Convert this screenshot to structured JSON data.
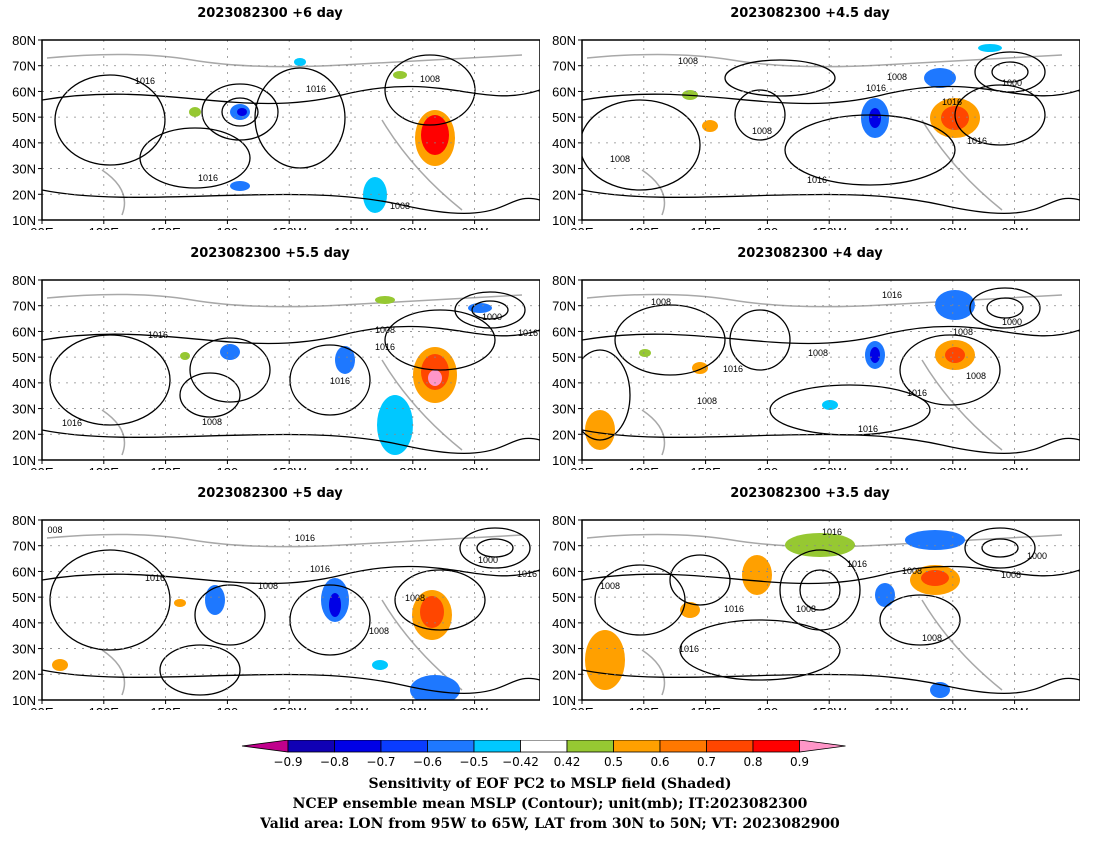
{
  "panels": [
    {
      "title": "2023082300  +6 day",
      "contour_labels": [
        "1016",
        "1008",
        "1016",
        "1016",
        "1008"
      ]
    },
    {
      "title": "2023082300  +4.5 day",
      "contour_labels": [
        "1008",
        "1008",
        "1016",
        "1008",
        "1000",
        "1016",
        "1016",
        "1008",
        "1016"
      ]
    },
    {
      "title": "2023082300  +5.5 day",
      "contour_labels": [
        "1016",
        "1008",
        "1016",
        "1016",
        "1000",
        "1016",
        "1008",
        "1016"
      ]
    },
    {
      "title": "2023082300  +4 day",
      "contour_labels": [
        "1008",
        "1016",
        "1008",
        "1008",
        "1000",
        "1016",
        "1008",
        "1016",
        "1016",
        "1008"
      ]
    },
    {
      "title": "2023082300  +5 day",
      "contour_labels": [
        "1016",
        "1008",
        "1016",
        "1016",
        "1008",
        "1000",
        "1016",
        "1008",
        "008"
      ]
    },
    {
      "title": "2023082300  +3.5 day",
      "contour_labels": [
        "1008",
        "1016",
        "1016",
        "1008",
        "1000",
        "1016",
        "1008",
        "1008",
        "1016",
        "1008"
      ]
    }
  ],
  "axes": {
    "lat_labels": [
      "80N",
      "70N",
      "60N",
      "50N",
      "40N",
      "30N",
      "20N",
      "10N"
    ],
    "lon_labels": [
      "90E",
      "120E",
      "150E",
      "180",
      "150W",
      "120W",
      "90W",
      "60W"
    ]
  },
  "colorbar": {
    "tick_labels": [
      "−0.9",
      "−0.8",
      "−0.7",
      "−0.6",
      "−0.5",
      "−0.42",
      "0.42",
      "0.5",
      "0.6",
      "0.7",
      "0.8",
      "0.9"
    ],
    "colors": [
      "#c0008c",
      "#1000b4",
      "#0000e6",
      "#0a3cff",
      "#1e78ff",
      "#00c8ff",
      "#ffffff",
      "#96c832",
      "#ffa000",
      "#ff7800",
      "#ff4600",
      "#ff0000",
      "#ff96c8"
    ]
  },
  "footer": {
    "line1": "Sensitivity of EOF PC2 to MSLP field (Shaded)",
    "line2": "NCEP ensemble mean MSLP (Contour); unit(mb); IT:2023082300",
    "line3": "Valid area: LON from 95W to 65W, LAT from 30N to 50N; VT: 2023082900"
  }
}
